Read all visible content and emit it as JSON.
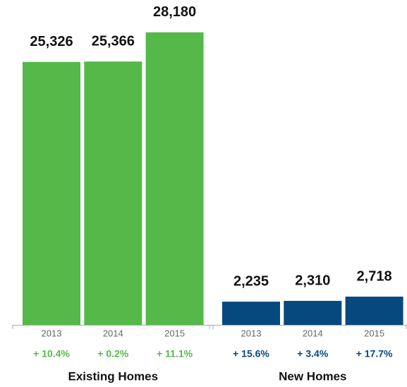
{
  "chart_data": {
    "type": "bar",
    "ylim": [
      0,
      30000
    ],
    "groups": [
      {
        "name": "Existing Homes",
        "color": "#55b94a",
        "categories": [
          "2013",
          "2014",
          "2015"
        ],
        "values": [
          25326,
          25366,
          28180
        ],
        "value_labels": [
          "25,326",
          "25,366",
          "28,180"
        ],
        "change_labels": [
          "+ 10.4%",
          "+ 0.2%",
          "+ 11.1%"
        ]
      },
      {
        "name": "New Homes",
        "color": "#05497f",
        "categories": [
          "2013",
          "2014",
          "2015"
        ],
        "values": [
          2235,
          2310,
          2718
        ],
        "value_labels": [
          "2,235",
          "2,310",
          "2,718"
        ],
        "change_labels": [
          "+ 15.6%",
          "+ 3.4%",
          "+ 17.7%"
        ]
      }
    ]
  }
}
